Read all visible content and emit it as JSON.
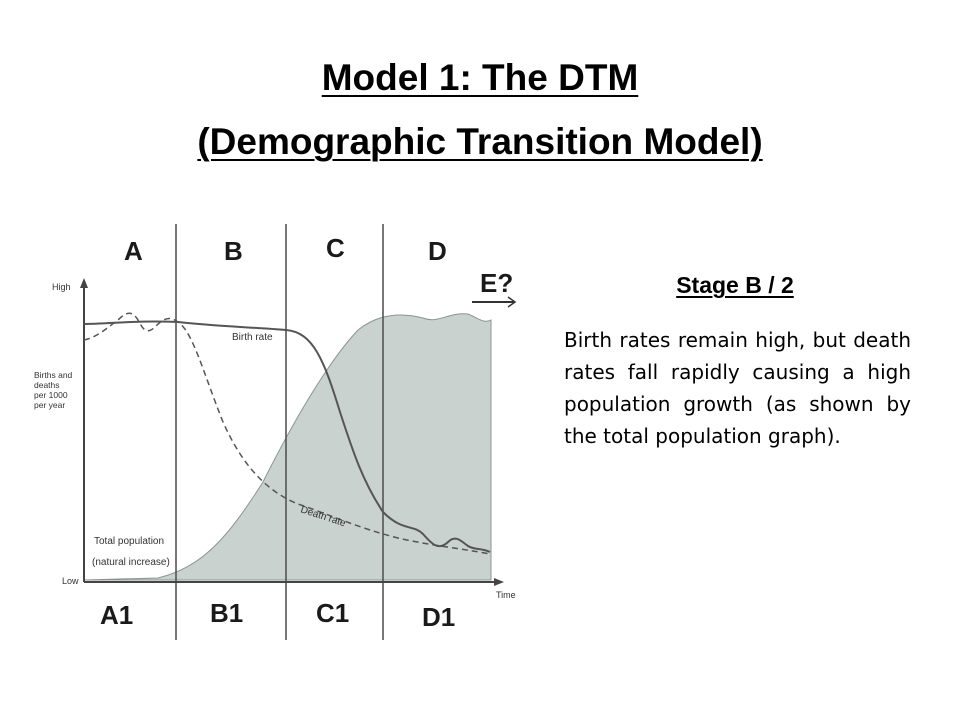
{
  "title": {
    "line1": "Model 1: The DTM",
    "line2": "(Demographic Transition Model)"
  },
  "diagram": {
    "stages_top": [
      "A",
      "B",
      "C",
      "D"
    ],
    "stage_next": "E?",
    "stages_bottom": [
      "A1",
      "B1",
      "C1",
      "D1"
    ],
    "y_axis": {
      "high": "High",
      "low": "Low",
      "label_lines": [
        "Births and",
        "deaths",
        "per 1000",
        "per year"
      ]
    },
    "x_axis": {
      "label": "Time"
    },
    "curve_labels": {
      "birth_rate": "Birth rate",
      "death_rate": "Death rate",
      "total_population": "Total population",
      "natural_increase": "(natural increase)"
    }
  },
  "info": {
    "heading": "Stage B / 2",
    "description": "Birth rates remain high, but death rates fall rapidly causing a high population growth (as shown by the total population graph)."
  }
}
